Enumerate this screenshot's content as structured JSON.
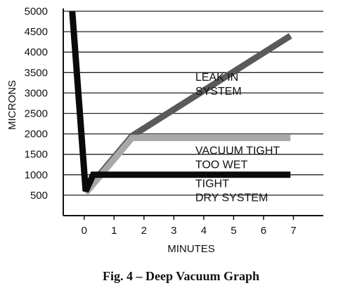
{
  "chart_data": {
    "type": "line",
    "xlabel": "MINUTES",
    "ylabel": "MICRONS",
    "xlim": [
      -0.7,
      8.0
    ],
    "ylim": [
      0,
      5000
    ],
    "x_ticks": [
      0,
      1,
      2,
      3,
      4,
      5,
      6,
      7
    ],
    "y_ticks": [
      500,
      1000,
      1500,
      2000,
      2500,
      3000,
      3500,
      4000,
      4500,
      5000
    ],
    "grid": "horizontal",
    "series": [
      {
        "name": "LEAK IN SYSTEM",
        "label_lines": [
          "LEAK IN",
          "SYSTEM"
        ],
        "color": "#5a5a5a",
        "points": [
          [
            0.05,
            600
          ],
          [
            1.6,
            1950
          ],
          [
            6.9,
            4400
          ]
        ]
      },
      {
        "name": "VACUUM TIGHT TOO WET",
        "label_lines": [
          "VACUUM TIGHT",
          "TOO WET"
        ],
        "color": "#a8a8a8",
        "points": [
          [
            0.05,
            550
          ],
          [
            1.6,
            1900
          ],
          [
            6.9,
            1900
          ]
        ]
      },
      {
        "name": "TIGHT DRY SYSTEM",
        "label_lines": [
          "TIGHT",
          "DRY SYSTEM"
        ],
        "color": "#0a0a0a",
        "points": [
          [
            -0.4,
            5000
          ],
          [
            0.05,
            600
          ],
          [
            0.3,
            1000
          ],
          [
            6.9,
            1000
          ]
        ]
      }
    ]
  },
  "caption": "Fig. 4 – Deep Vacuum Graph"
}
